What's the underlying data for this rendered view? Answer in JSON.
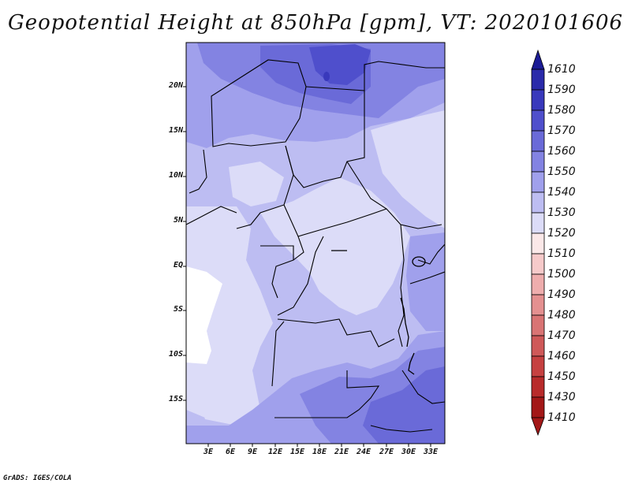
{
  "title": "Geopotential Height at 850hPa [gpm], VT: 2020101606",
  "footer": "GrADS: IGES/COLA",
  "map": {
    "lat_labels": [
      "20N",
      "15N",
      "10N",
      "5N",
      "EQ",
      "5S",
      "10S",
      "15S"
    ],
    "lon_labels": [
      "3E",
      "6E",
      "9E",
      "12E",
      "15E",
      "18E",
      "21E",
      "24E",
      "27E",
      "30E",
      "33E"
    ]
  },
  "colorbar": {
    "labels": [
      "1610",
      "1590",
      "1580",
      "1570",
      "1560",
      "1550",
      "1540",
      "1530",
      "1520",
      "1510",
      "1500",
      "1490",
      "1480",
      "1470",
      "1460",
      "1450",
      "1430",
      "1410"
    ],
    "colors": {
      "1610": "#1c1c96",
      "1590": "#2a2aaa",
      "1580": "#3939bc",
      "1570": "#4f4fcc",
      "1560": "#6a6ad8",
      "1550": "#8383e2",
      "1540": "#a0a0ec",
      "1530": "#bdbdf2",
      "1520": "#dcdcf8",
      "1510": "#fbe8e8",
      "1500": "#f6caca",
      "1490": "#eeadad",
      "1480": "#e49090",
      "1470": "#d97474",
      "1460": "#cf5959",
      "1450": "#c64141",
      "1430": "#b82b2b",
      "1410": "#a31818"
    }
  }
}
